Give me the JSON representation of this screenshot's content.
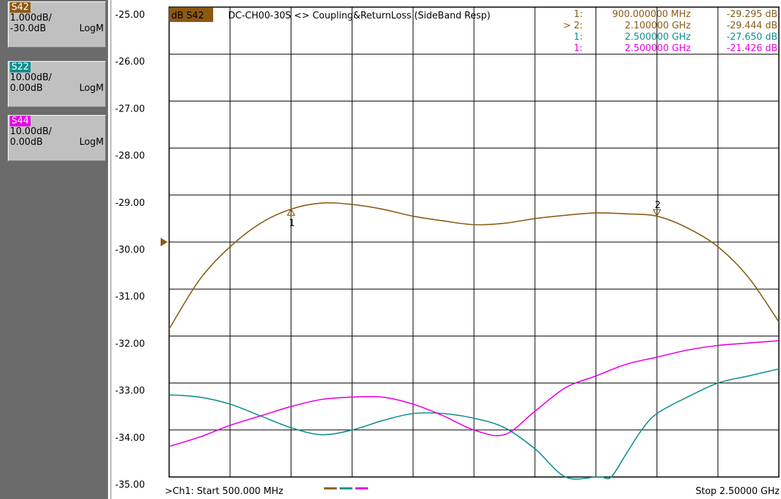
{
  "traces": [
    {
      "id": "S42",
      "scale": "1.000dB/",
      "ref": "-30.0dB",
      "format": "LogM",
      "color": "#8b5a12",
      "text_color": "#fff"
    },
    {
      "id": "S22",
      "scale": "10.00dB/",
      "ref": "0.00dB",
      "format": "LogM",
      "color": "#0f8f8f",
      "text_color": "#fff"
    },
    {
      "id": "S44",
      "scale": "10.00dB/",
      "ref": "0.00dB",
      "format": "LogM",
      "color": "#e600e6",
      "text_color": "#fff"
    }
  ],
  "header": {
    "badge": "dB S42",
    "title": "DC-CH00-30S <> Coupling&ReturnLoss (SideBand Resp)"
  },
  "markers": [
    {
      "label": "1:",
      "freq": "900.000000 MHz",
      "value": "-29.295 dB",
      "color": "#8b5a12"
    },
    {
      "label": "> 2:",
      "freq": "2.100000 GHz",
      "value": "-29.444 dB",
      "color": "#8b5a12"
    },
    {
      "label": "1:",
      "freq": "2.500000 GHz",
      "value": "-27.650 dB",
      "color": "#0f8f8f"
    },
    {
      "label": "1:",
      "freq": "2.500000 GHz",
      "value": "-21.426 dB",
      "color": "#e600e6"
    }
  ],
  "footer": {
    "start": ">Ch1: Start  500.000 MHz",
    "stop": "Stop  2.50000 GHz"
  },
  "chart_data": {
    "type": "line",
    "y_tick_labels": [
      "-25.00",
      "-26.00",
      "-27.00",
      "-28.00",
      "-29.00",
      "-30.00",
      "-31.00",
      "-32.00",
      "-33.00",
      "-34.00",
      "-35.00"
    ],
    "ylim": [
      -35,
      -25
    ],
    "xlim": [
      500,
      2500
    ],
    "x_unit": "MHz",
    "grid": true,
    "ref_marker_value": -30.0,
    "series": [
      {
        "name": "S42",
        "color": "#8b5a12",
        "x": [
          500,
          600,
          700,
          800,
          900,
          1000,
          1100,
          1200,
          1300,
          1400,
          1500,
          1600,
          1700,
          1800,
          1900,
          2000,
          2100,
          2200,
          2300,
          2400,
          2500
        ],
        "y": [
          -31.85,
          -30.8,
          -30.1,
          -29.6,
          -29.3,
          -29.17,
          -29.2,
          -29.3,
          -29.45,
          -29.55,
          -29.63,
          -29.6,
          -29.5,
          -29.43,
          -29.38,
          -29.4,
          -29.45,
          -29.7,
          -30.1,
          -30.75,
          -31.7
        ]
      },
      {
        "name": "S22",
        "color": "#0f8f8f",
        "x": [
          500,
          600,
          700,
          800,
          900,
          1000,
          1100,
          1200,
          1300,
          1400,
          1500,
          1600,
          1700,
          1800,
          1900,
          1920,
          1950,
          2000,
          2050,
          2100,
          2200,
          2300,
          2400,
          2500
        ],
        "y": [
          -33.25,
          -33.3,
          -33.45,
          -33.7,
          -33.95,
          -34.1,
          -34.0,
          -33.8,
          -33.65,
          -33.65,
          -33.75,
          -33.95,
          -34.4,
          -35.0,
          -35.0,
          -35.0,
          -35.0,
          -34.5,
          -34.0,
          -33.65,
          -33.3,
          -33.0,
          -32.85,
          -32.7
        ]
      },
      {
        "name": "S44",
        "color": "#e600e6",
        "x": [
          500,
          600,
          700,
          800,
          900,
          1000,
          1100,
          1200,
          1300,
          1400,
          1500,
          1600,
          1700,
          1800,
          1900,
          2000,
          2100,
          2200,
          2300,
          2400,
          2500
        ],
        "y": [
          -34.35,
          -34.15,
          -33.9,
          -33.7,
          -33.5,
          -33.35,
          -33.3,
          -33.3,
          -33.45,
          -33.7,
          -34.0,
          -34.1,
          -33.6,
          -33.1,
          -32.85,
          -32.6,
          -32.45,
          -32.3,
          -32.2,
          -32.15,
          -32.1
        ]
      }
    ],
    "marker_points": [
      {
        "series": "S42",
        "x": 900,
        "y": -29.295,
        "id": "1",
        "dir": "up"
      },
      {
        "series": "S42",
        "x": 2100,
        "y": -29.444,
        "id": "2",
        "dir": "down"
      }
    ]
  }
}
